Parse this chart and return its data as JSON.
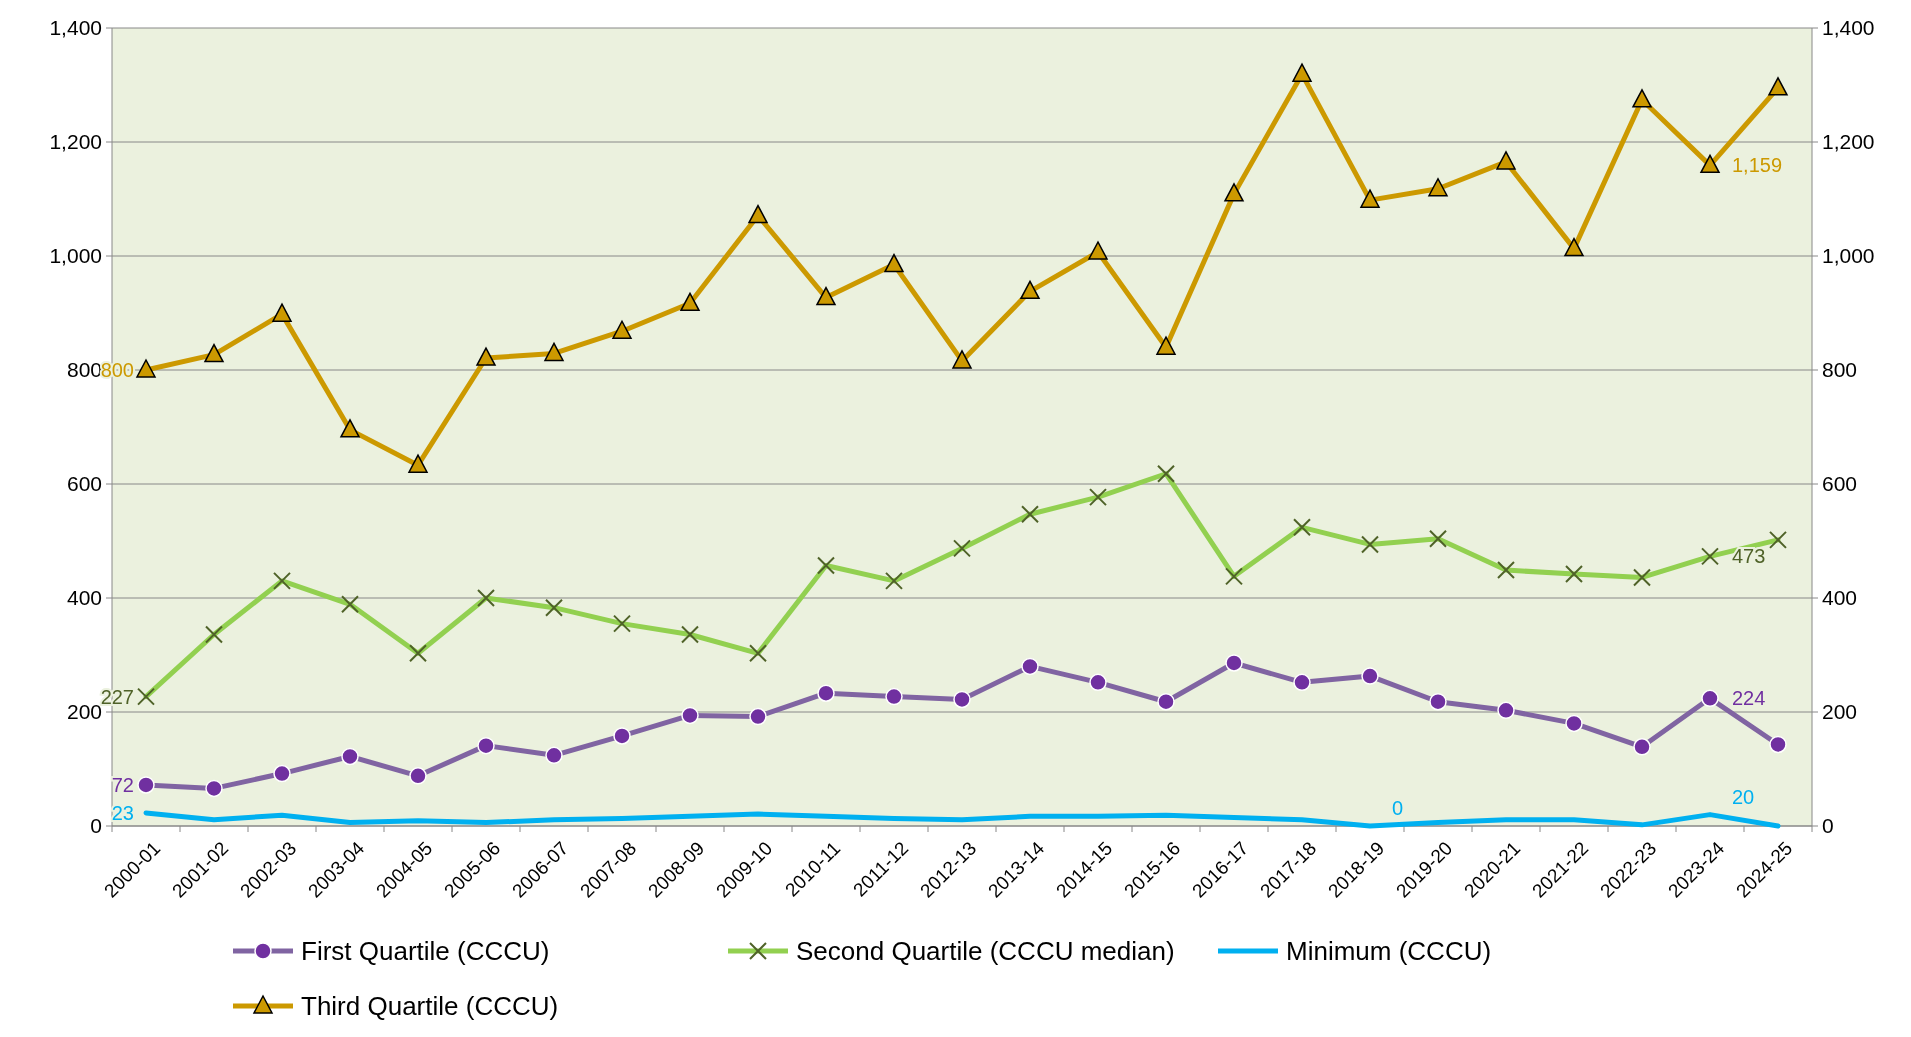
{
  "chart_data": {
    "type": "line",
    "categories": [
      "2000-01",
      "2001-02",
      "2002-03",
      "2003-04",
      "2004-05",
      "2005-06",
      "2006-07",
      "2007-08",
      "2008-09",
      "2009-10",
      "2010-11",
      "2011-12",
      "2012-13",
      "2013-14",
      "2014-15",
      "2015-16",
      "2016-17",
      "2017-18",
      "2018-19",
      "2019-20",
      "2020-21",
      "2021-22",
      "2022-23",
      "2023-24",
      "2024-25"
    ],
    "series": [
      {
        "name": "First Quartile (CCCU)",
        "color": "#8064a2",
        "marker": "circle",
        "values": [
          72,
          66,
          92,
          122,
          88,
          141,
          124,
          158,
          194,
          192,
          233,
          227,
          222,
          280,
          252,
          218,
          286,
          252,
          263,
          218,
          203,
          180,
          139,
          224,
          143
        ],
        "value_labels": [
          "72",
          null,
          null,
          null,
          null,
          null,
          null,
          null,
          null,
          null,
          null,
          null,
          null,
          null,
          null,
          null,
          null,
          null,
          null,
          null,
          null,
          null,
          null,
          "224",
          null
        ]
      },
      {
        "name": "Second Quartile (CCCU median)",
        "color": "#92d050",
        "marker": "cross",
        "values": [
          227,
          336,
          430,
          389,
          303,
          400,
          383,
          355,
          336,
          303,
          457,
          430,
          487,
          547,
          577,
          618,
          438,
          524,
          494,
          504,
          449,
          442,
          436,
          473,
          502
        ],
        "value_labels": [
          "227",
          null,
          null,
          null,
          null,
          null,
          null,
          null,
          null,
          null,
          null,
          null,
          null,
          null,
          null,
          null,
          null,
          null,
          null,
          null,
          null,
          null,
          null,
          "473",
          null
        ]
      },
      {
        "name": "Minimum (CCCU)",
        "color": "#00b0f0",
        "marker": "none",
        "values": [
          23,
          11,
          19,
          6,
          9,
          6,
          11,
          13,
          17,
          21,
          17,
          13,
          11,
          17,
          17,
          19,
          15,
          11,
          0,
          6,
          11,
          11,
          2,
          20,
          0
        ],
        "value_labels": [
          "23",
          null,
          null,
          null,
          null,
          null,
          null,
          null,
          null,
          null,
          null,
          null,
          null,
          null,
          null,
          null,
          null,
          null,
          "0",
          null,
          null,
          null,
          null,
          "20",
          null
        ]
      },
      {
        "name": "Third Quartile (CCCU)",
        "color": "#cc9900",
        "marker": "triangle",
        "values": [
          800,
          827,
          898,
          695,
          633,
          821,
          829,
          868,
          917,
          1071,
          927,
          985,
          816,
          938,
          1007,
          840,
          1109,
          1319,
          1098,
          1118,
          1165,
          1013,
          1274,
          1159,
          1295
        ],
        "value_labels": [
          "800",
          null,
          null,
          null,
          null,
          null,
          null,
          null,
          null,
          null,
          null,
          null,
          null,
          null,
          null,
          null,
          null,
          null,
          null,
          null,
          null,
          null,
          null,
          "1,159",
          null
        ]
      }
    ],
    "ylim": [
      0,
      1400
    ],
    "yticks": [
      0,
      200,
      400,
      600,
      800,
      {
        "value": 1000,
        "label": "1,000"
      },
      {
        "value": 1200,
        "label": "1,200"
      },
      {
        "value": 1400,
        "label": "1,400"
      }
    ],
    "y2lim": [
      0,
      1400
    ],
    "y2ticks": [
      0,
      200,
      400,
      600,
      800,
      {
        "value": 1000,
        "label": "1,000"
      },
      {
        "value": 1200,
        "label": "1,200"
      },
      {
        "value": 1400,
        "label": "1,400"
      }
    ],
    "grid": "y",
    "legend": "bottom",
    "line_style": "solid"
  }
}
